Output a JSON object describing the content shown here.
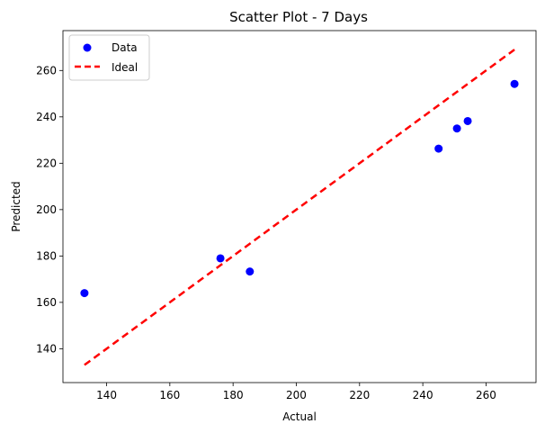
{
  "chart_data": {
    "type": "scatter",
    "title": "Scatter Plot - 7 Days",
    "xlabel": "Actual",
    "ylabel": "Predicted",
    "xlim": [
      126.2,
      275.8
    ],
    "ylim": [
      125.4,
      277.2
    ],
    "xticks": [
      140,
      160,
      180,
      200,
      220,
      240,
      260
    ],
    "yticks": [
      140,
      160,
      180,
      200,
      220,
      240,
      260
    ],
    "grid": false,
    "legend_position": "upper-left",
    "series": [
      {
        "name": "Data",
        "kind": "scatter",
        "color": "#0000ff",
        "x": [
          133.0,
          176.0,
          185.3,
          245.0,
          250.8,
          254.2,
          269.0
        ],
        "y": [
          164.0,
          179.0,
          173.3,
          226.3,
          235.0,
          238.2,
          254.2
        ]
      },
      {
        "name": "Ideal",
        "kind": "line",
        "style": "dashed",
        "color": "#ff0000",
        "x": [
          133.0,
          269.0
        ],
        "y": [
          133.0,
          269.0
        ]
      }
    ]
  }
}
